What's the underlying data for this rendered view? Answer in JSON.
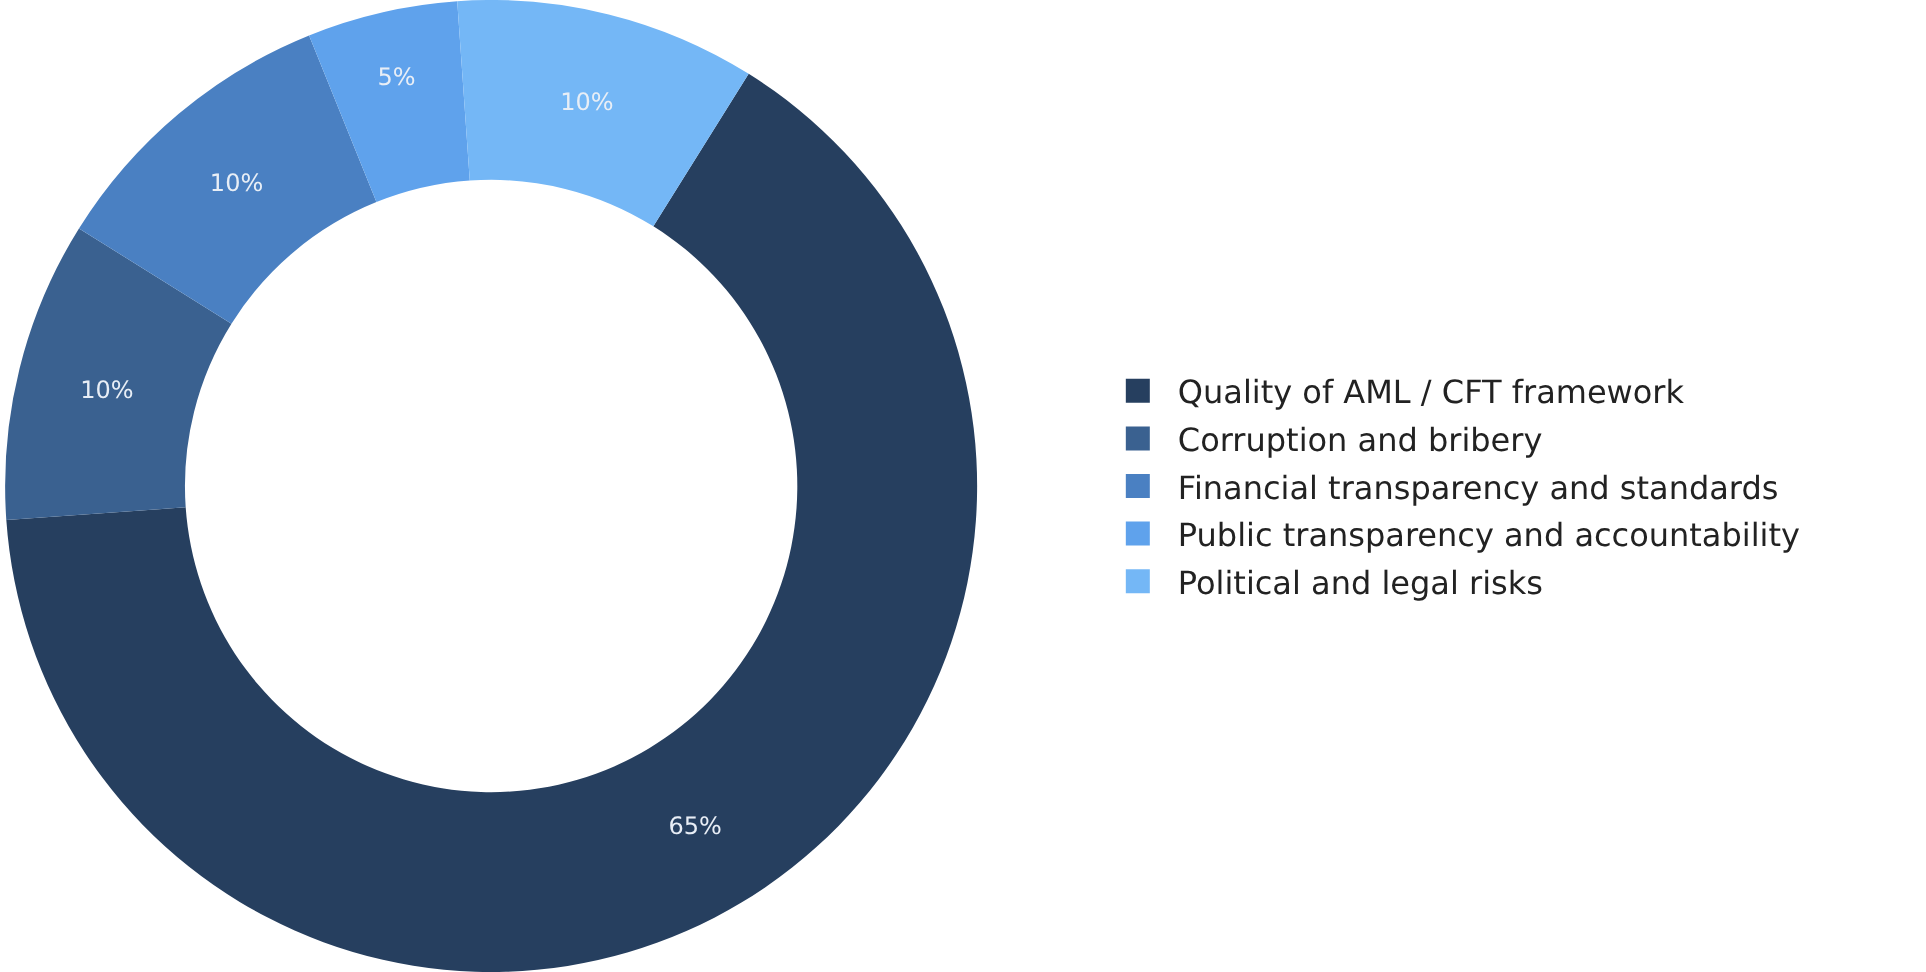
{
  "chart_data": {
    "type": "donut",
    "categories": [
      "Quality of AML / CFT framework",
      "Corruption and bribery",
      "Financial transparency and standards",
      "Public transparency and accountability",
      "Political and legal risks"
    ],
    "values": [
      65,
      10,
      10,
      5,
      10
    ],
    "value_labels": [
      "65%",
      "10%",
      "10%",
      "5%",
      "10%"
    ],
    "colors": [
      "#263f5f",
      "#3a6190",
      "#4a80c2",
      "#5fa2ec",
      "#74b7f6"
    ],
    "legend": "right"
  }
}
